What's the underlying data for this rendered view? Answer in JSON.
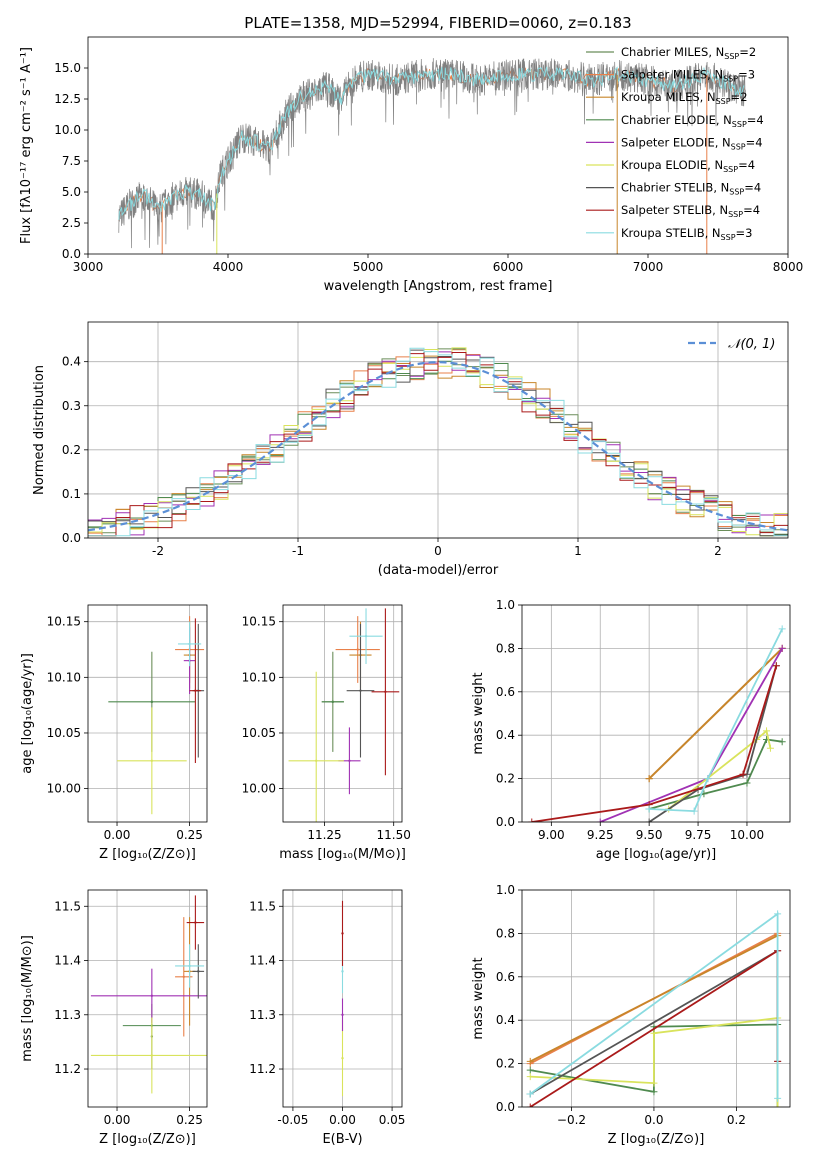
{
  "figure": {
    "title": "PLATE=1358, MJD=52994, FIBERID=0060, z=0.183"
  },
  "models": [
    {
      "name": "Chabrier MILES",
      "nssp": "2",
      "color": "#6b8e5a"
    },
    {
      "name": "Salpeter MILES",
      "nssp": "3",
      "color": "#e8804a"
    },
    {
      "name": "Kroupa MILES",
      "nssp": "2",
      "color": "#c8862a"
    },
    {
      "name": "Chabrier ELODIE",
      "nssp": "4",
      "color": "#4f8a4f"
    },
    {
      "name": "Salpeter ELODIE",
      "nssp": "4",
      "color": "#a032b4"
    },
    {
      "name": "Kroupa ELODIE",
      "nssp": "4",
      "color": "#d9e35c"
    },
    {
      "name": "Chabrier STELIB",
      "nssp": "4",
      "color": "#555555"
    },
    {
      "name": "Salpeter STELIB",
      "nssp": "4",
      "color": "#aa1a1a"
    },
    {
      "name": "Kroupa STELIB",
      "nssp": "3",
      "color": "#8adbe0"
    }
  ],
  "chart_data": [
    {
      "id": "spectrum",
      "type": "line",
      "title": "PLATE=1358, MJD=52994, FIBERID=0060, z=0.183",
      "xlabel": "wavelength [Angstrom, rest frame]",
      "ylabel": "Flux [fλ10⁻¹⁷ erg cm⁻² s⁻¹ A⁻¹]",
      "xlim": [
        3000,
        8000
      ],
      "ylim": [
        0,
        17.5
      ],
      "xticks": [
        3000,
        4000,
        5000,
        6000,
        7000,
        8000
      ],
      "yticks": [
        "0.0",
        "2.5",
        "5.0",
        "7.5",
        "10.0",
        "12.5",
        "15.0"
      ],
      "data_color": "#808080",
      "data_envelope": {
        "x": [
          3220,
          3300,
          3400,
          3500,
          3600,
          3700,
          3800,
          3900,
          3950,
          4000,
          4100,
          4200,
          4300,
          4400,
          4500,
          4600,
          4700,
          4800,
          4900,
          5000,
          5200,
          5400,
          5600,
          5800,
          6000,
          6200,
          6400,
          6600,
          6800,
          7000,
          7200,
          7400,
          7600,
          7700
        ],
        "y": [
          3.0,
          4.0,
          4.8,
          3.5,
          4.5,
          5.0,
          4.8,
          3.8,
          6.5,
          7.5,
          9.5,
          9.0,
          8.5,
          11.0,
          12.5,
          13.0,
          13.5,
          12.5,
          14.0,
          14.5,
          14.0,
          14.5,
          14.5,
          14.0,
          14.5,
          14.5,
          14.5,
          14.0,
          14.5,
          14.0,
          13.5,
          14.5,
          13.5,
          13.0
        ]
      },
      "model_edges": [
        {
          "x": 3530,
          "color": "#e8804a"
        },
        {
          "x": 3920,
          "color": "#d9e35c"
        },
        {
          "x": 6780,
          "color": "#c8862a"
        },
        {
          "x": 7420,
          "color": "#e8804a"
        }
      ]
    },
    {
      "id": "residuals",
      "type": "bar",
      "xlabel": "(data-model)/error",
      "ylabel": "Normed distribution",
      "xlim": [
        -2.5,
        2.5
      ],
      "ylim": [
        0,
        0.49
      ],
      "xticks": [
        -2,
        -1,
        0,
        1,
        2
      ],
      "yticks": [
        "0.0",
        "0.1",
        "0.2",
        "0.3",
        "0.4"
      ],
      "reference": {
        "name": "𝒩(0, 1)",
        "color": "#5b8fd6"
      },
      "bin_width": 0.1,
      "bins_start": -2.5
    },
    {
      "id": "age-vs-Z",
      "type": "scatter",
      "xlabel": "Z [log₁₀(Z/Z⊙)]",
      "ylabel": "age  [log₁₀(age/yr)]",
      "xlim": [
        -0.1,
        0.31
      ],
      "ylim": [
        9.97,
        10.165
      ],
      "xticks": [
        "0.00",
        "0.25"
      ],
      "yticks": [
        "10.00",
        "10.05",
        "10.10",
        "10.15"
      ],
      "points": [
        {
          "model": 0,
          "x": 0.12,
          "y": 10.078,
          "xerr": 0.0,
          "yerr": 0.045
        },
        {
          "model": 1,
          "x": 0.25,
          "y": 10.125,
          "xerr": 0.05,
          "yerr": 0.03
        },
        {
          "model": 2,
          "x": 0.25,
          "y": 10.12,
          "xerr": 0.02,
          "yerr": 0.03
        },
        {
          "model": 3,
          "x": 0.12,
          "y": 10.078,
          "xerr": 0.15,
          "yerr": 0.0
        },
        {
          "model": 4,
          "x": 0.25,
          "y": 10.115,
          "xerr": 0.02,
          "yerr": 0.03
        },
        {
          "model": 5,
          "x": 0.12,
          "y": 10.025,
          "xerr": 0.12,
          "yerr": 0.048
        },
        {
          "model": 6,
          "x": 0.28,
          "y": 10.088,
          "xerr": 0.02,
          "yerr": 0.06
        },
        {
          "model": 7,
          "x": 0.27,
          "y": 10.088,
          "xerr": 0.02,
          "yerr": 0.065
        },
        {
          "model": 8,
          "x": 0.25,
          "y": 10.13,
          "xerr": 0.04,
          "yerr": 0.02
        }
      ]
    },
    {
      "id": "age-vs-mass",
      "type": "scatter",
      "xlabel": "mass [log₁₀(M/M⊙)]",
      "ylabel": "",
      "xlim": [
        11.1,
        11.53
      ],
      "ylim": [
        9.97,
        10.165
      ],
      "xticks": [
        "11.25",
        "11.50"
      ],
      "yticks": [
        "10.00",
        "10.05",
        "10.10",
        "10.15"
      ],
      "points": [
        {
          "model": 0,
          "x": 11.28,
          "y": 10.078,
          "xerr": 0.04,
          "yerr": 0.045
        },
        {
          "model": 1,
          "x": 11.37,
          "y": 10.125,
          "xerr": 0.08,
          "yerr": 0.03
        },
        {
          "model": 2,
          "x": 11.38,
          "y": 10.12,
          "xerr": 0.04,
          "yerr": 0.03
        },
        {
          "model": 3,
          "x": 11.28,
          "y": 10.078,
          "xerr": 0.04,
          "yerr": 0.0
        },
        {
          "model": 4,
          "x": 11.34,
          "y": 10.025,
          "xerr": 0.04,
          "yerr": 0.03
        },
        {
          "model": 5,
          "x": 11.22,
          "y": 10.025,
          "xerr": 0.1,
          "yerr": 0.08
        },
        {
          "model": 6,
          "x": 11.38,
          "y": 10.088,
          "xerr": 0.05,
          "yerr": 0.06
        },
        {
          "model": 7,
          "x": 11.47,
          "y": 10.087,
          "xerr": 0.05,
          "yerr": 0.075
        },
        {
          "model": 8,
          "x": 11.4,
          "y": 10.137,
          "xerr": 0.06,
          "yerr": 0.025
        }
      ]
    },
    {
      "id": "weight-vs-age",
      "type": "line",
      "xlabel": "age  [log₁₀(age/yr)]",
      "ylabel": "mass weight",
      "xlim": [
        8.85,
        10.22
      ],
      "ylim": [
        0,
        1.0
      ],
      "xticks": [
        "9.00",
        "9.25",
        "9.50",
        "9.75",
        "10.00"
      ],
      "yticks": [
        "0.0",
        "0.2",
        "0.4",
        "0.6",
        "0.8",
        "1.0"
      ],
      "series": [
        {
          "model": 0,
          "x": [
            9.5,
            10.18
          ],
          "y": [
            0.2,
            0.8
          ]
        },
        {
          "model": 1,
          "x": [
            9.5,
            10.18
          ],
          "y": [
            0.2,
            0.8
          ]
        },
        {
          "model": 2,
          "x": [
            9.5,
            10.18
          ],
          "y": [
            0.2,
            0.8
          ]
        },
        {
          "model": 3,
          "x": [
            9.5,
            9.78,
            10.0,
            10.1,
            10.18
          ],
          "y": [
            0.06,
            0.13,
            0.18,
            0.38,
            0.37
          ]
        },
        {
          "model": 4,
          "x": [
            9.25,
            9.8,
            10.18
          ],
          "y": [
            0.0,
            0.2,
            0.8
          ]
        },
        {
          "model": 5,
          "x": [
            9.6,
            10.05,
            10.1,
            10.12
          ],
          "y": [
            0.06,
            0.38,
            0.42,
            0.34
          ]
        },
        {
          "model": 6,
          "x": [
            9.5,
            9.75,
            10.0,
            10.15
          ],
          "y": [
            0.0,
            0.15,
            0.22,
            0.72
          ]
        },
        {
          "model": 7,
          "x": [
            8.9,
            9.5,
            9.98,
            10.15
          ],
          "y": [
            0.0,
            0.08,
            0.22,
            0.72
          ]
        },
        {
          "model": 8,
          "x": [
            9.5,
            9.73,
            9.8,
            10.18
          ],
          "y": [
            0.06,
            0.05,
            0.2,
            0.89
          ]
        }
      ]
    },
    {
      "id": "mass-vs-Z",
      "type": "scatter",
      "xlabel": "Z [log₁₀(Z/Z⊙)]",
      "ylabel": "mass [log₁₀(M/M⊙)]",
      "xlim": [
        -0.1,
        0.31
      ],
      "ylim": [
        11.13,
        11.53
      ],
      "xticks": [
        "0.00",
        "0.25"
      ],
      "yticks": [
        "11.2",
        "11.3",
        "11.4",
        "11.5"
      ],
      "points": [
        {
          "model": 0,
          "x": 0.12,
          "y": 11.26,
          "xerr": 0.0,
          "yerr": 0.06
        },
        {
          "model": 1,
          "x": 0.23,
          "y": 11.37,
          "xerr": 0.03,
          "yerr": 0.11
        },
        {
          "model": 2,
          "x": 0.25,
          "y": 11.38,
          "xerr": 0.02,
          "yerr": 0.1
        },
        {
          "model": 3,
          "x": 0.12,
          "y": 11.28,
          "xerr": 0.1,
          "yerr": 0.0
        },
        {
          "model": 4,
          "x": 0.12,
          "y": 11.335,
          "xerr": 0.21,
          "yerr": 0.05
        },
        {
          "model": 5,
          "x": 0.12,
          "y": 11.225,
          "xerr": 0.21,
          "yerr": 0.07
        },
        {
          "model": 6,
          "x": 0.28,
          "y": 11.38,
          "xerr": 0.02,
          "yerr": 0.05
        },
        {
          "model": 7,
          "x": 0.27,
          "y": 11.47,
          "xerr": 0.03,
          "yerr": 0.05
        },
        {
          "model": 8,
          "x": 0.25,
          "y": 11.39,
          "xerr": 0.05,
          "yerr": 0.04
        }
      ]
    },
    {
      "id": "mass-vs-EBV",
      "type": "scatter",
      "xlabel": "E(B-V)",
      "ylabel": "",
      "xlim": [
        -0.06,
        0.06
      ],
      "ylim": [
        11.13,
        11.53
      ],
      "xticks": [
        "-0.05",
        "0.00",
        "0.05"
      ],
      "yticks": [
        "11.2",
        "11.3",
        "11.4",
        "11.5"
      ],
      "points": [
        {
          "model": 5,
          "x": 0.0,
          "y": 11.22,
          "xerr": 0.0,
          "yerr": 0.07
        },
        {
          "model": 4,
          "x": 0.0,
          "y": 11.3,
          "xerr": 0.0,
          "yerr": 0.03
        },
        {
          "model": 8,
          "x": 0.0,
          "y": 11.38,
          "xerr": 0.0,
          "yerr": 0.04
        },
        {
          "model": 7,
          "x": 0.0,
          "y": 11.45,
          "xerr": 0.0,
          "yerr": 0.06
        }
      ]
    },
    {
      "id": "weight-vs-Z",
      "type": "line",
      "xlabel": "Z [log₁₀(Z/Z⊙)]",
      "ylabel": "mass weight",
      "xlim": [
        -0.32,
        0.33
      ],
      "ylim": [
        0,
        1.0
      ],
      "xticks": [
        "−0.2",
        "0.0",
        "0.2"
      ],
      "yticks": [
        "0.0",
        "0.2",
        "0.4",
        "0.6",
        "0.8",
        "1.0"
      ],
      "series": [
        {
          "model": 1,
          "x": [
            -0.3,
            0.3
          ],
          "y": [
            0.2,
            0.8
          ]
        },
        {
          "model": 2,
          "x": [
            -0.3,
            0.3
          ],
          "y": [
            0.21,
            0.79
          ]
        },
        {
          "model": 3,
          "x": [
            -0.3,
            0.0,
            0.0,
            0.3,
            0.3
          ],
          "y": [
            0.17,
            0.07,
            0.37,
            0.38,
            0.0
          ]
        },
        {
          "model": 5,
          "x": [
            -0.3,
            0.0,
            0.0,
            0.3,
            0.3
          ],
          "y": [
            0.14,
            0.11,
            0.34,
            0.41,
            0.0
          ]
        },
        {
          "model": 6,
          "x": [
            -0.3,
            0.3,
            0.3
          ],
          "y": [
            0.06,
            0.72,
            0.21
          ]
        },
        {
          "model": 7,
          "x": [
            -0.3,
            0.3,
            0.3
          ],
          "y": [
            0.0,
            0.72,
            0.21
          ]
        },
        {
          "model": 8,
          "x": [
            -0.3,
            0.3,
            0.3
          ],
          "y": [
            0.06,
            0.89,
            0.04
          ]
        }
      ]
    }
  ]
}
